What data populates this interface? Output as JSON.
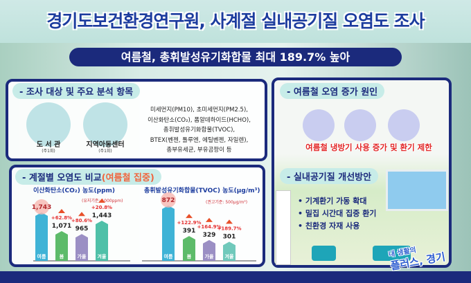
{
  "title": "경기도보건환경연구원, 사계절 실내공기질 오염도 조사",
  "subtitle": "여름철, 총휘발성유기화합물 최대 189.7% 높아",
  "survey": {
    "heading": "- 조사 대상 및 주요 분석 항목",
    "targets": [
      {
        "label": "도 서 관",
        "freq": "(주1회)"
      },
      {
        "label": "지역아동센터",
        "freq": "(주1회)"
      }
    ],
    "items": [
      "미세먼지(PM10), 초미세먼지(PM2.5),",
      "이산화탄소(CO₂), 폼알데하이드(HCHO),",
      "총휘발성유기화합물(TVOC),",
      "BTEX(벤젠, 톨루엔, 에틸벤젠, 자일렌),",
      "총부유세균, 부유곰팡이 등"
    ]
  },
  "compare": {
    "heading": "- 계절별 오염도 비교",
    "heading_highlight": "(여름철 집중)"
  },
  "chart_data": [
    {
      "type": "bar",
      "title": "이산화탄소(CO₂) 농도(ppm)",
      "note": "(유지기준: 1000ppm)",
      "categories": [
        "여름",
        "봄",
        "가을",
        "겨울"
      ],
      "values": [
        1743,
        1071,
        965,
        1443
      ],
      "value_labels": [
        "1,743",
        "1,071",
        "965",
        "1,443"
      ],
      "increase_labels": [
        "",
        "+62.8%",
        "+80.6%",
        "+20.8%"
      ],
      "colors": [
        "#3fb3d6",
        "#5dbb6a",
        "#9b8fc4",
        "#4fc0a8"
      ]
    },
    {
      "type": "bar",
      "title": "총휘발성유기화합물(TVOC) 농도(μg/m³)",
      "note": "(권고기준: 500μg/m³)",
      "categories": [
        "여름",
        "봄",
        "가을",
        "겨울"
      ],
      "values": [
        872,
        391,
        329,
        301
      ],
      "value_labels": [
        "872",
        "391",
        "329",
        "301"
      ],
      "increase_labels": [
        "",
        "+122.9%",
        "+164.9%",
        "+189.7%"
      ],
      "colors": [
        "#3fb3d6",
        "#5dbb6a",
        "#9b8fc4",
        "#70c9bb"
      ]
    }
  ],
  "cause": {
    "heading": "- 여름철 오염 증가 원인",
    "text": "여름철 냉방기 사용 증가 및 환기 제한"
  },
  "improve": {
    "heading": "- 실내공기질 개선방안",
    "items": [
      "• 기계환기 가동 확대",
      "• 밀집 시간대 집중 환기",
      "• 친환경 자재 사용"
    ]
  },
  "logo": {
    "line1": "내 생활의",
    "line2": "플러스, 경기"
  }
}
